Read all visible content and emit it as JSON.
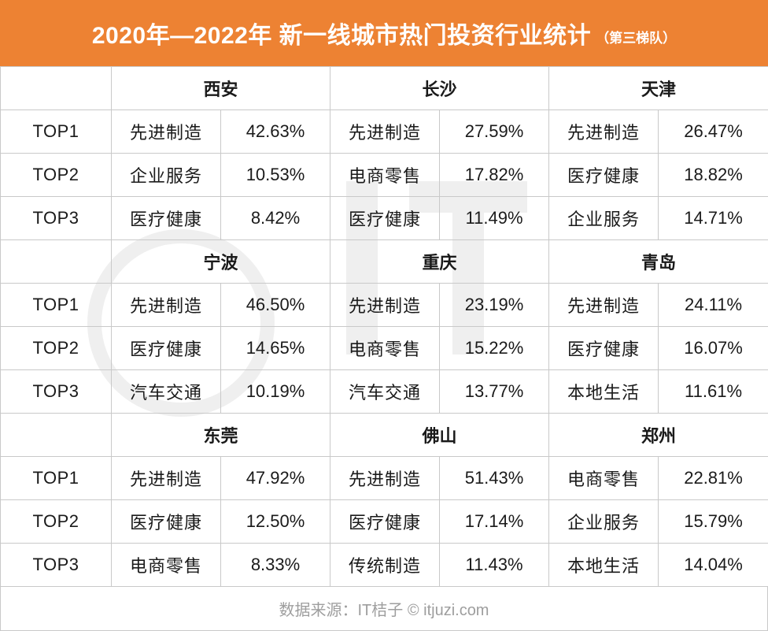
{
  "title": {
    "main": "2020年—2022年 新一线城市热门投资行业统计",
    "sub": "（第三梯队）"
  },
  "colors": {
    "accent": "#ed8233",
    "border": "#c9c9c9",
    "source_text": "#9e9e9e"
  },
  "groups": [
    {
      "cities": [
        {
          "name": "西安",
          "rows": [
            {
              "industry": "先进制造",
              "pct": "42.63%"
            },
            {
              "industry": "企业服务",
              "pct": "10.53%"
            },
            {
              "industry": "医疗健康",
              "pct": "8.42%"
            }
          ]
        },
        {
          "name": "长沙",
          "rows": [
            {
              "industry": "先进制造",
              "pct": "27.59%"
            },
            {
              "industry": "电商零售",
              "pct": "17.82%"
            },
            {
              "industry": "医疗健康",
              "pct": "11.49%"
            }
          ]
        },
        {
          "name": "天津",
          "rows": [
            {
              "industry": "先进制造",
              "pct": "26.47%"
            },
            {
              "industry": "医疗健康",
              "pct": "18.82%"
            },
            {
              "industry": "企业服务",
              "pct": "14.71%"
            }
          ]
        }
      ]
    },
    {
      "cities": [
        {
          "name": "宁波",
          "rows": [
            {
              "industry": "先进制造",
              "pct": "46.50%"
            },
            {
              "industry": "医疗健康",
              "pct": "14.65%"
            },
            {
              "industry": "汽车交通",
              "pct": "10.19%"
            }
          ]
        },
        {
          "name": "重庆",
          "rows": [
            {
              "industry": "先进制造",
              "pct": "23.19%"
            },
            {
              "industry": "电商零售",
              "pct": "15.22%"
            },
            {
              "industry": "汽车交通",
              "pct": "13.77%"
            }
          ]
        },
        {
          "name": "青岛",
          "rows": [
            {
              "industry": "先进制造",
              "pct": "24.11%"
            },
            {
              "industry": "医疗健康",
              "pct": "16.07%"
            },
            {
              "industry": "本地生活",
              "pct": "11.61%"
            }
          ]
        }
      ]
    },
    {
      "cities": [
        {
          "name": "东莞",
          "rows": [
            {
              "industry": "先进制造",
              "pct": "47.92%"
            },
            {
              "industry": "医疗健康",
              "pct": "12.50%"
            },
            {
              "industry": "电商零售",
              "pct": "8.33%"
            }
          ]
        },
        {
          "name": "佛山",
          "rows": [
            {
              "industry": "先进制造",
              "pct": "51.43%"
            },
            {
              "industry": "医疗健康",
              "pct": "17.14%"
            },
            {
              "industry": "传统制造",
              "pct": "11.43%"
            }
          ]
        },
        {
          "name": "郑州",
          "rows": [
            {
              "industry": "电商零售",
              "pct": "22.81%"
            },
            {
              "industry": "企业服务",
              "pct": "15.79%"
            },
            {
              "industry": "本地生活",
              "pct": "14.04%"
            }
          ]
        }
      ]
    }
  ],
  "ranks": [
    "TOP1",
    "TOP2",
    "TOP3"
  ],
  "source": "数据来源：IT桔子 © itjuzi.com"
}
